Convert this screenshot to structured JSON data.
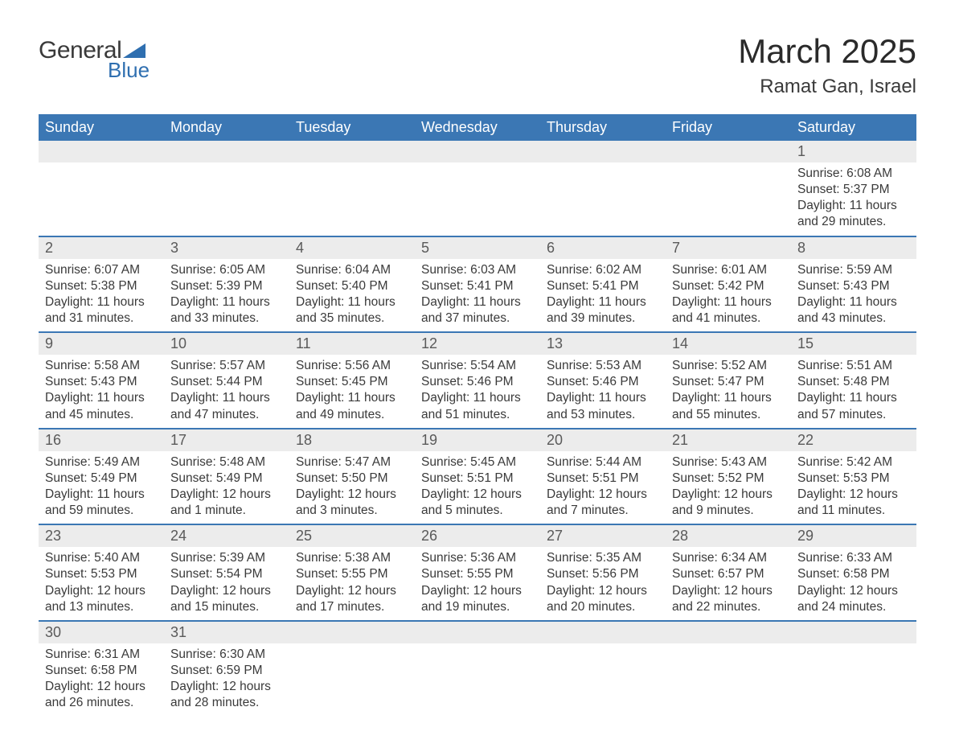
{
  "logo": {
    "text_general": "General",
    "text_blue": "Blue",
    "accent_color": "#2f6fb0"
  },
  "title": "March 2025",
  "location": "Ramat Gan, Israel",
  "colors": {
    "header_bg": "#3b77b4",
    "header_text": "#ffffff",
    "daynum_bg": "#ececec",
    "text": "#3a3a3a",
    "border": "#3b77b4"
  },
  "weekdays": [
    "Sunday",
    "Monday",
    "Tuesday",
    "Wednesday",
    "Thursday",
    "Friday",
    "Saturday"
  ],
  "weeks": [
    [
      null,
      null,
      null,
      null,
      null,
      null,
      {
        "n": "1",
        "sunrise": "6:08 AM",
        "sunset": "5:37 PM",
        "daylight": "11 hours and 29 minutes."
      }
    ],
    [
      {
        "n": "2",
        "sunrise": "6:07 AM",
        "sunset": "5:38 PM",
        "daylight": "11 hours and 31 minutes."
      },
      {
        "n": "3",
        "sunrise": "6:05 AM",
        "sunset": "5:39 PM",
        "daylight": "11 hours and 33 minutes."
      },
      {
        "n": "4",
        "sunrise": "6:04 AM",
        "sunset": "5:40 PM",
        "daylight": "11 hours and 35 minutes."
      },
      {
        "n": "5",
        "sunrise": "6:03 AM",
        "sunset": "5:41 PM",
        "daylight": "11 hours and 37 minutes."
      },
      {
        "n": "6",
        "sunrise": "6:02 AM",
        "sunset": "5:41 PM",
        "daylight": "11 hours and 39 minutes."
      },
      {
        "n": "7",
        "sunrise": "6:01 AM",
        "sunset": "5:42 PM",
        "daylight": "11 hours and 41 minutes."
      },
      {
        "n": "8",
        "sunrise": "5:59 AM",
        "sunset": "5:43 PM",
        "daylight": "11 hours and 43 minutes."
      }
    ],
    [
      {
        "n": "9",
        "sunrise": "5:58 AM",
        "sunset": "5:43 PM",
        "daylight": "11 hours and 45 minutes."
      },
      {
        "n": "10",
        "sunrise": "5:57 AM",
        "sunset": "5:44 PM",
        "daylight": "11 hours and 47 minutes."
      },
      {
        "n": "11",
        "sunrise": "5:56 AM",
        "sunset": "5:45 PM",
        "daylight": "11 hours and 49 minutes."
      },
      {
        "n": "12",
        "sunrise": "5:54 AM",
        "sunset": "5:46 PM",
        "daylight": "11 hours and 51 minutes."
      },
      {
        "n": "13",
        "sunrise": "5:53 AM",
        "sunset": "5:46 PM",
        "daylight": "11 hours and 53 minutes."
      },
      {
        "n": "14",
        "sunrise": "5:52 AM",
        "sunset": "5:47 PM",
        "daylight": "11 hours and 55 minutes."
      },
      {
        "n": "15",
        "sunrise": "5:51 AM",
        "sunset": "5:48 PM",
        "daylight": "11 hours and 57 minutes."
      }
    ],
    [
      {
        "n": "16",
        "sunrise": "5:49 AM",
        "sunset": "5:49 PM",
        "daylight": "11 hours and 59 minutes."
      },
      {
        "n": "17",
        "sunrise": "5:48 AM",
        "sunset": "5:49 PM",
        "daylight": "12 hours and 1 minute."
      },
      {
        "n": "18",
        "sunrise": "5:47 AM",
        "sunset": "5:50 PM",
        "daylight": "12 hours and 3 minutes."
      },
      {
        "n": "19",
        "sunrise": "5:45 AM",
        "sunset": "5:51 PM",
        "daylight": "12 hours and 5 minutes."
      },
      {
        "n": "20",
        "sunrise": "5:44 AM",
        "sunset": "5:51 PM",
        "daylight": "12 hours and 7 minutes."
      },
      {
        "n": "21",
        "sunrise": "5:43 AM",
        "sunset": "5:52 PM",
        "daylight": "12 hours and 9 minutes."
      },
      {
        "n": "22",
        "sunrise": "5:42 AM",
        "sunset": "5:53 PM",
        "daylight": "12 hours and 11 minutes."
      }
    ],
    [
      {
        "n": "23",
        "sunrise": "5:40 AM",
        "sunset": "5:53 PM",
        "daylight": "12 hours and 13 minutes."
      },
      {
        "n": "24",
        "sunrise": "5:39 AM",
        "sunset": "5:54 PM",
        "daylight": "12 hours and 15 minutes."
      },
      {
        "n": "25",
        "sunrise": "5:38 AM",
        "sunset": "5:55 PM",
        "daylight": "12 hours and 17 minutes."
      },
      {
        "n": "26",
        "sunrise": "5:36 AM",
        "sunset": "5:55 PM",
        "daylight": "12 hours and 19 minutes."
      },
      {
        "n": "27",
        "sunrise": "5:35 AM",
        "sunset": "5:56 PM",
        "daylight": "12 hours and 20 minutes."
      },
      {
        "n": "28",
        "sunrise": "6:34 AM",
        "sunset": "6:57 PM",
        "daylight": "12 hours and 22 minutes."
      },
      {
        "n": "29",
        "sunrise": "6:33 AM",
        "sunset": "6:58 PM",
        "daylight": "12 hours and 24 minutes."
      }
    ],
    [
      {
        "n": "30",
        "sunrise": "6:31 AM",
        "sunset": "6:58 PM",
        "daylight": "12 hours and 26 minutes."
      },
      {
        "n": "31",
        "sunrise": "6:30 AM",
        "sunset": "6:59 PM",
        "daylight": "12 hours and 28 minutes."
      },
      null,
      null,
      null,
      null,
      null
    ]
  ],
  "labels": {
    "sunrise": "Sunrise: ",
    "sunset": "Sunset: ",
    "daylight": "Daylight: "
  }
}
